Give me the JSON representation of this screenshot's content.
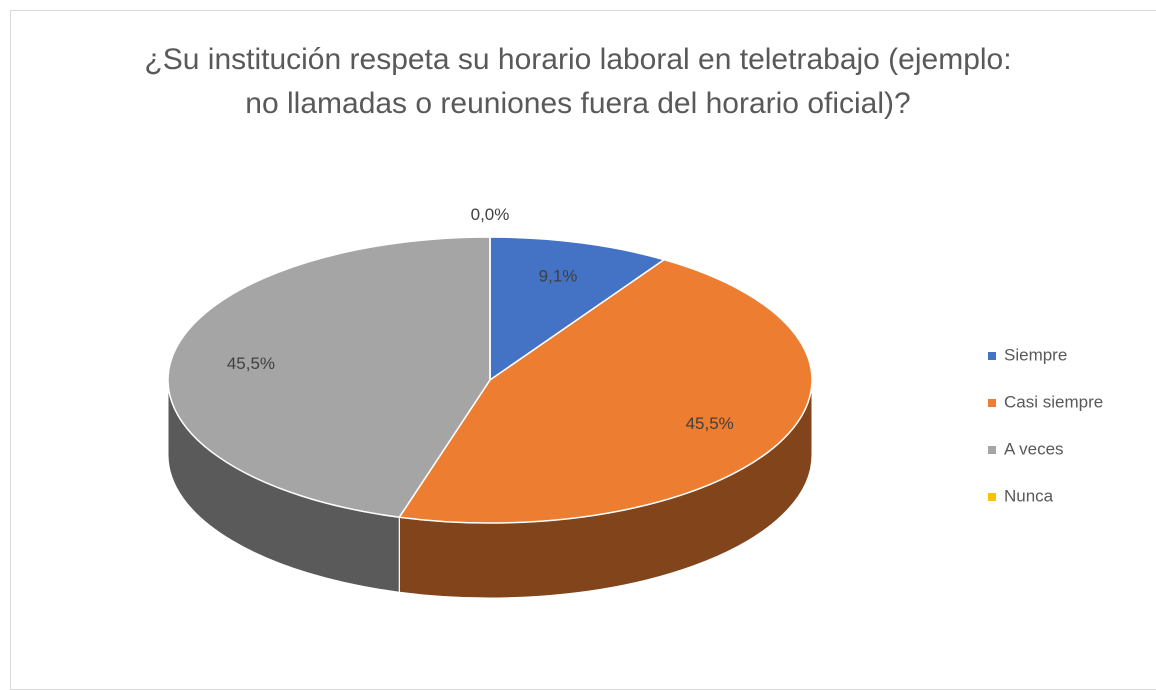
{
  "chart_data": {
    "type": "pie",
    "title": "¿Su institución respeta su horario laboral en teletrabajo (ejemplo: no llamadas o reuniones fuera del horario oficial)?",
    "categories": [
      "Siempre",
      "Casi siempre",
      "A veces",
      "Nunca"
    ],
    "values": [
      9.1,
      45.5,
      45.5,
      0.0
    ],
    "value_labels": [
      "9,1%",
      "45,5%",
      "45,5%",
      "0,0%"
    ],
    "colors": [
      "#4472c4",
      "#ed7d31",
      "#a5a5a5",
      "#ffc000"
    ],
    "legend": "right"
  }
}
